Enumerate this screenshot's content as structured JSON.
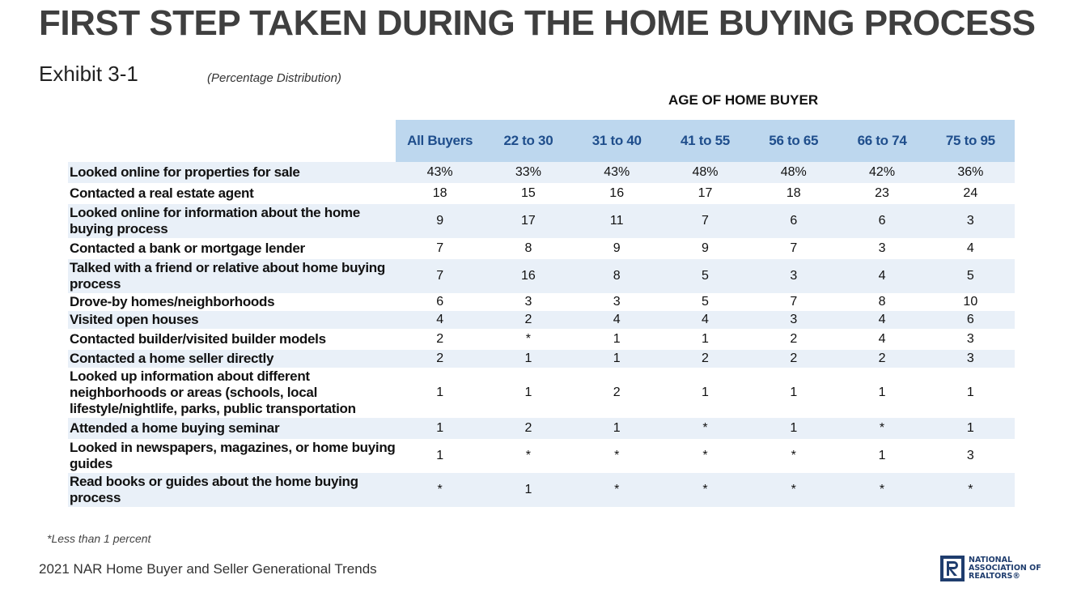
{
  "title": "FIRST STEP TAKEN DURING THE HOME BUYING PROCESS",
  "exhibit": "Exhibit 3-1",
  "subtitle": "(Percentage Distribution)",
  "group_header": "AGE OF HOME BUYER",
  "footnote": "*Less than 1 percent",
  "source": "2021 NAR Home Buyer and Seller Generational Trends",
  "logo": {
    "icon": "realtor-r-logo-icon",
    "lines": [
      "NATIONAL",
      "ASSOCIATION OF",
      "REALTORS®"
    ]
  },
  "colors": {
    "header_band": "#bdd7ee",
    "header_text": "#1f4e8c",
    "row_shade": "#e9f0f8",
    "title": "#3f3f3f"
  },
  "chart_data": {
    "type": "table",
    "columns": [
      "All Buyers",
      "22 to 30",
      "31 to 40",
      "41 to 55",
      "56 to 65",
      "66 to 74",
      "75 to 95"
    ],
    "rows": [
      {
        "label": "Looked online for properties for sale",
        "values": [
          "43%",
          "33%",
          "43%",
          "48%",
          "48%",
          "42%",
          "36%"
        ]
      },
      {
        "label": "Contacted a real estate agent",
        "values": [
          "18",
          "15",
          "16",
          "17",
          "18",
          "23",
          "24"
        ]
      },
      {
        "label": "Looked online for information about the home buying process",
        "values": [
          "9",
          "17",
          "11",
          "7",
          "6",
          "6",
          "3"
        ]
      },
      {
        "label": "Contacted a bank or mortgage lender",
        "values": [
          "7",
          "8",
          "9",
          "9",
          "7",
          "3",
          "4"
        ]
      },
      {
        "label": "Talked with a friend or relative about home buying process",
        "values": [
          "7",
          "16",
          "8",
          "5",
          "3",
          "4",
          "5"
        ]
      },
      {
        "label": "Drove-by homes/neighborhoods",
        "values": [
          "6",
          "3",
          "3",
          "5",
          "7",
          "8",
          "10"
        ]
      },
      {
        "label": "Visited open houses",
        "values": [
          "4",
          "2",
          "4",
          "4",
          "3",
          "4",
          "6"
        ]
      },
      {
        "label": "Contacted builder/visited builder models",
        "values": [
          "2",
          "*",
          "1",
          "1",
          "2",
          "4",
          "3"
        ]
      },
      {
        "label": "Contacted a home seller directly",
        "values": [
          "2",
          "1",
          "1",
          "2",
          "2",
          "2",
          "3"
        ]
      },
      {
        "label": "Looked up information about different neighborhoods or areas (schools, local lifestyle/nightlife, parks, public transportation",
        "values": [
          "1",
          "1",
          "2",
          "1",
          "1",
          "1",
          "1"
        ]
      },
      {
        "label": "Attended a home buying seminar",
        "values": [
          "1",
          "2",
          "1",
          "*",
          "1",
          "*",
          "1"
        ]
      },
      {
        "label": "Looked in newspapers, magazines, or home buying guides",
        "values": [
          "1",
          "*",
          "*",
          "*",
          "*",
          "1",
          "3"
        ]
      },
      {
        "label": "Read books or guides about the home buying process",
        "values": [
          "*",
          "1",
          "*",
          "*",
          "*",
          "*",
          "*"
        ]
      }
    ]
  }
}
